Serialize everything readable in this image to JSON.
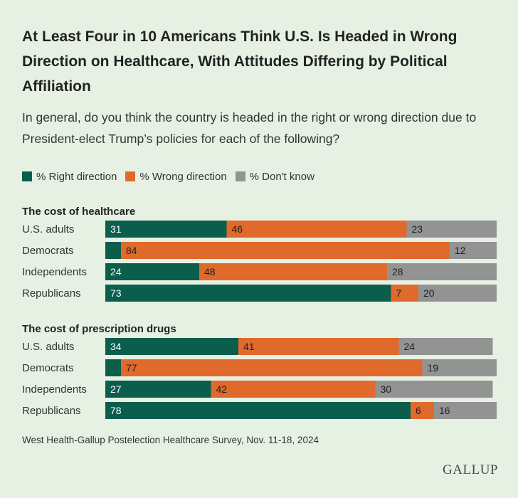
{
  "title": "At Least Four in 10 Americans Think U.S. Is Headed in Wrong Direction on Healthcare, With Attitudes Differing by Political Affiliation",
  "subtitle": "In general, do you think the country is headed in the right or wrong direction due to President-elect Trump’s policies for each of the following?",
  "footer": "West Health-Gallup Postelection Healthcare Survey, Nov. 11-18, 2024",
  "logo": "GALLUP",
  "colors": {
    "right": "#0b5e4c",
    "wrong": "#e06a2b",
    "dont_know": "#939393",
    "background": "#e7f1e3"
  },
  "chart_data": {
    "type": "bar",
    "orientation": "horizontal",
    "stacked": true,
    "xlim": [
      0,
      100
    ],
    "legend": {
      "placement": "top-left",
      "entries": [
        "% Right direction",
        "% Wrong direction",
        "% Don't know"
      ]
    },
    "groups": [
      {
        "title": "The cost of healthcare",
        "categories": [
          "U.S. adults",
          "Democrats",
          "Independents",
          "Republicans"
        ],
        "series": [
          {
            "name": "% Right direction",
            "values": [
              31,
              4,
              24,
              73
            ]
          },
          {
            "name": "% Wrong direction",
            "values": [
              46,
              84,
              48,
              7
            ]
          },
          {
            "name": "% Don't know",
            "values": [
              23,
              12,
              28,
              20
            ]
          }
        ]
      },
      {
        "title": "The cost of prescription drugs",
        "categories": [
          "U.S. adults",
          "Democrats",
          "Independents",
          "Republicans"
        ],
        "series": [
          {
            "name": "% Right direction",
            "values": [
              34,
              4,
              27,
              78
            ]
          },
          {
            "name": "% Wrong direction",
            "values": [
              41,
              77,
              42,
              6
            ]
          },
          {
            "name": "% Don't know",
            "values": [
              24,
              19,
              30,
              16
            ]
          }
        ]
      }
    ]
  }
}
